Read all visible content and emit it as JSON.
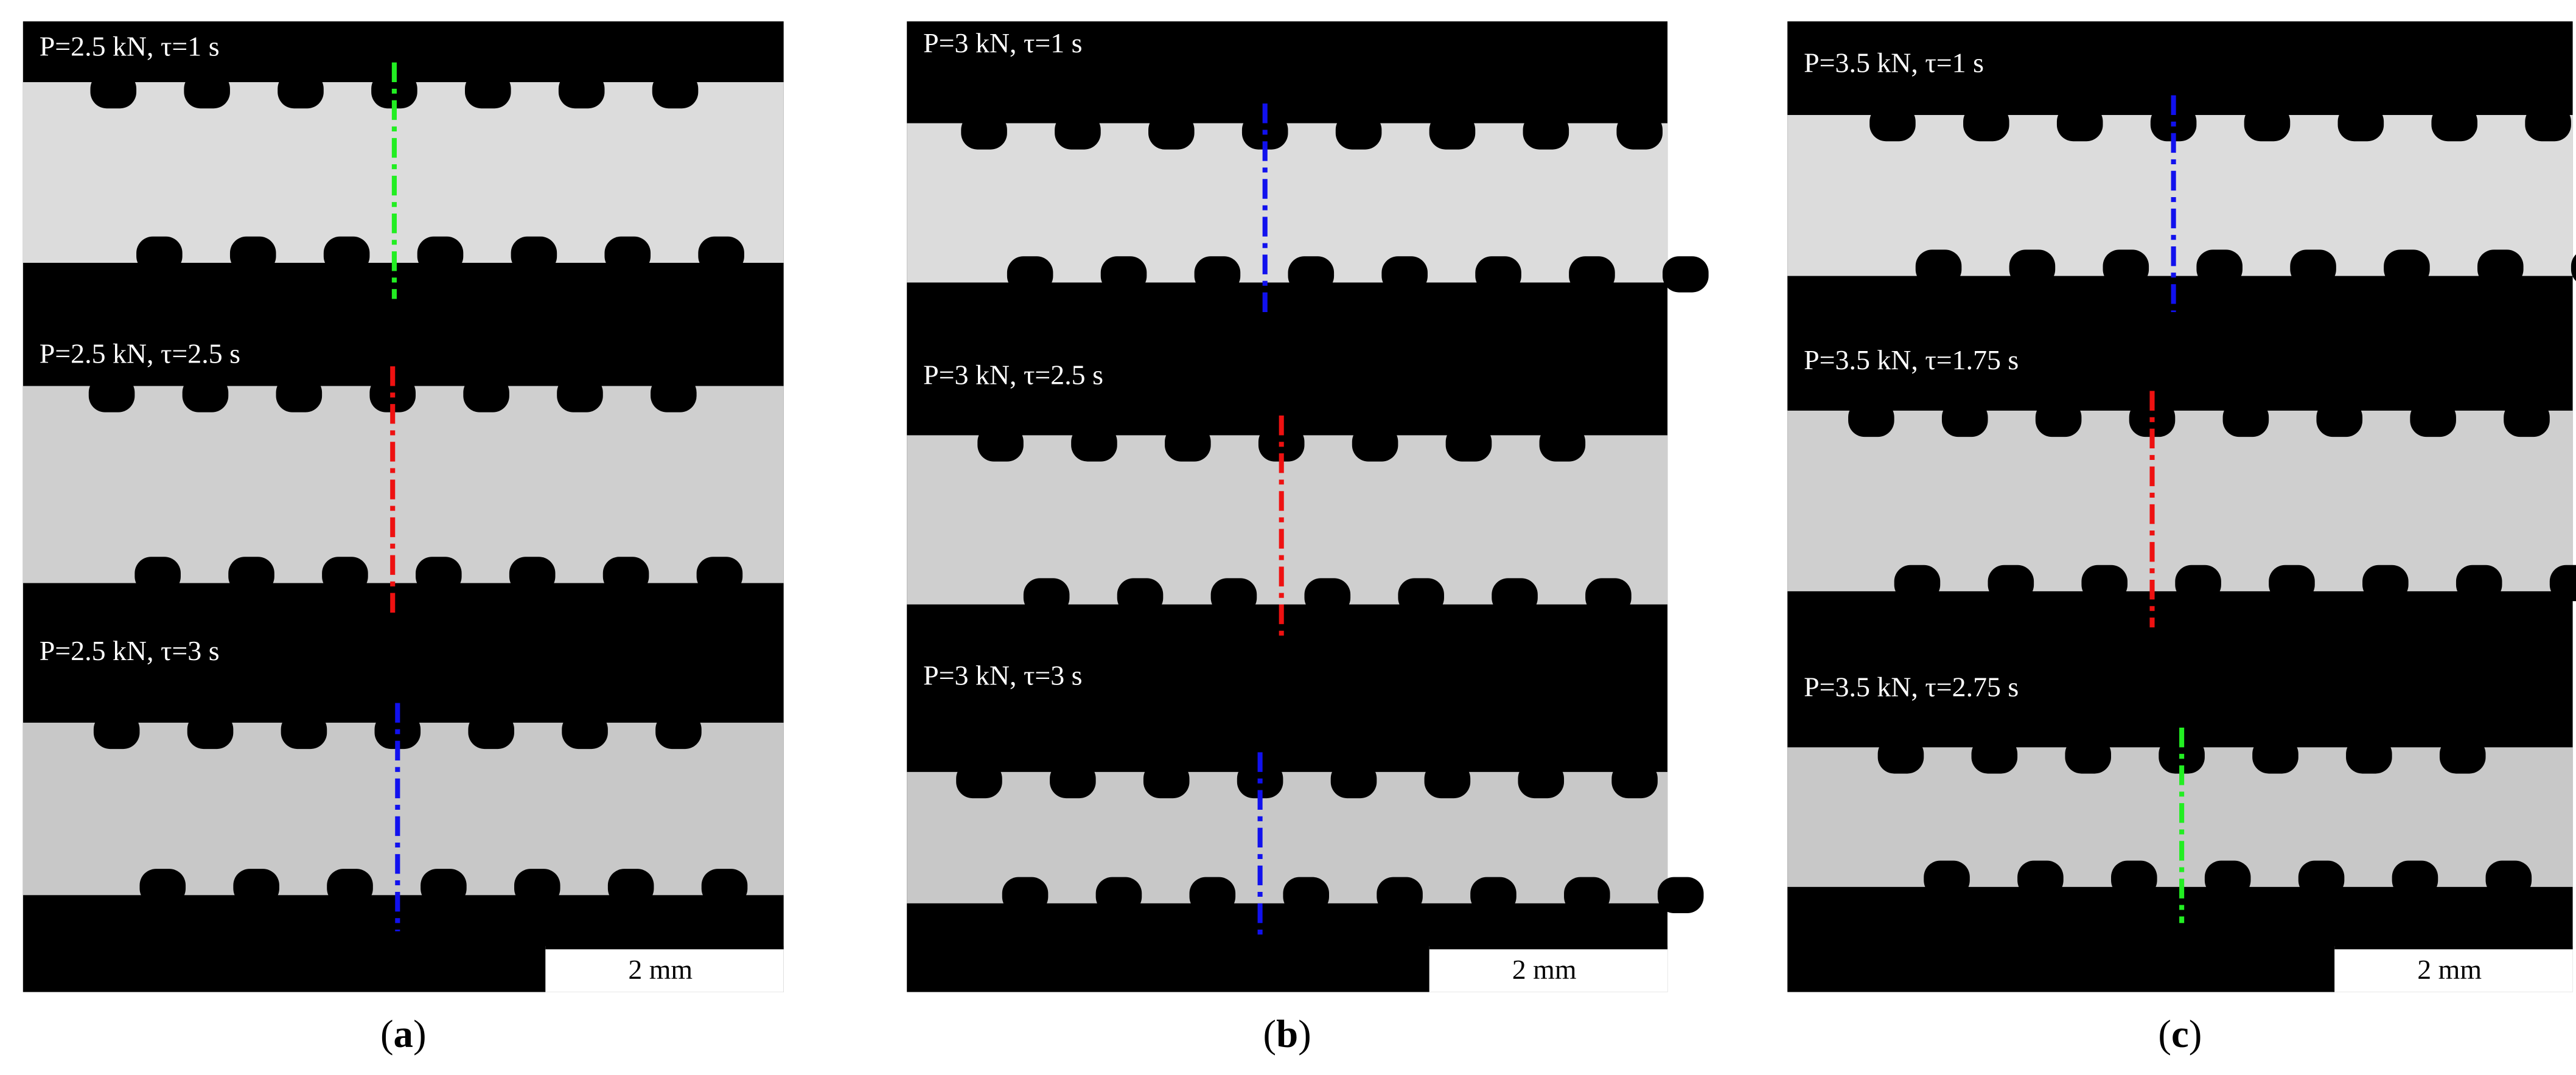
{
  "panels": [
    {
      "labels": [
        "P=2.5 kN, τ=1 s",
        "P=2.5 kN, τ=2.5 s",
        "P=2.5 kN, τ=3 s"
      ],
      "line_colors": [
        "#22ee22",
        "#ee1111",
        "#1111ee"
      ],
      "scale_bar": "2 mm",
      "caption": [
        "(",
        "a",
        ")"
      ]
    },
    {
      "labels": [
        "P=3 kN, τ=1 s",
        "P=3 kN, τ=2.5 s",
        "P=3 kN, τ=3 s"
      ],
      "line_colors": [
        "#1111ee",
        "#ee1111",
        "#1111ee"
      ],
      "scale_bar": "2 mm",
      "caption": [
        "(",
        "b",
        ")"
      ]
    },
    {
      "labels": [
        "P=3.5 kN, τ=1 s",
        "P=3.5 kN, τ=1.75 s",
        "P=3.5 kN, τ=2.75 s"
      ],
      "line_colors": [
        "#1111ee",
        "#ee1111",
        "#22ee22"
      ],
      "scale_bar": "2 mm",
      "caption": [
        "(",
        "c",
        ")"
      ]
    }
  ]
}
